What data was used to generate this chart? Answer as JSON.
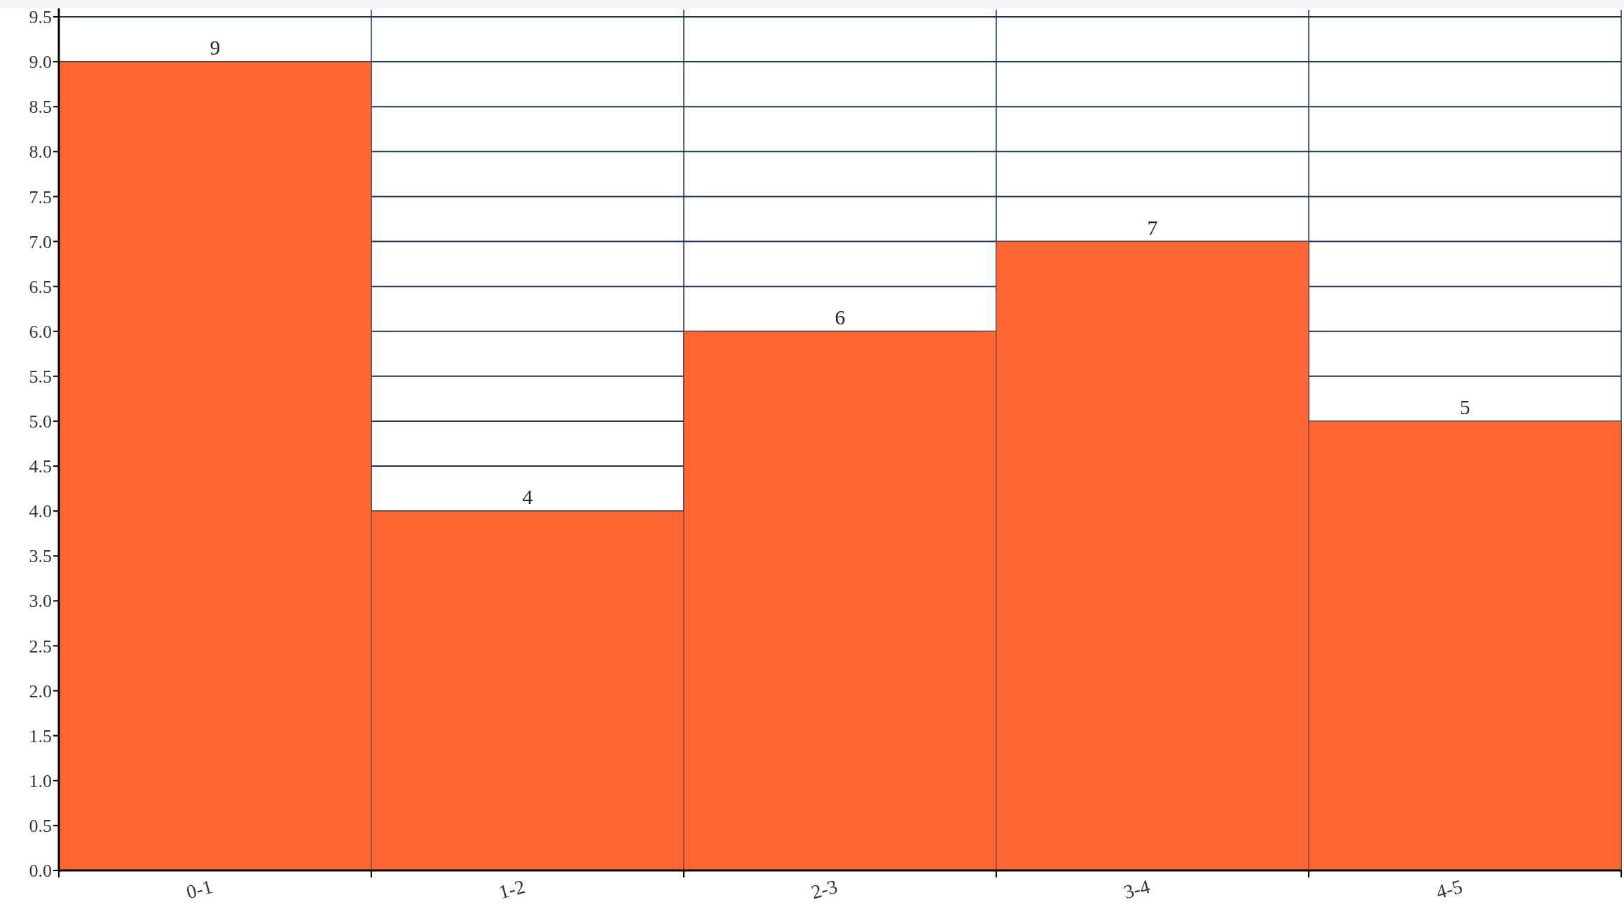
{
  "chart_data": {
    "type": "bar",
    "categories": [
      "0-1",
      "1-2",
      "2-3",
      "3-4",
      "4-5"
    ],
    "values": [
      9,
      4,
      6,
      7,
      5
    ],
    "color": "#ff6633",
    "data_labels": true,
    "grid": true,
    "ylim": [
      0,
      9.5
    ],
    "yticks": [
      {
        "value": 0,
        "label": "0.0"
      },
      {
        "value": 0.5,
        "label": "0.5"
      },
      {
        "value": 1,
        "label": "1.0"
      },
      {
        "value": 1.5,
        "label": "1.5"
      },
      {
        "value": 2,
        "label": "2.0"
      },
      {
        "value": 2.5,
        "label": "2.5"
      },
      {
        "value": 3,
        "label": "3.0"
      },
      {
        "value": 3.5,
        "label": "3.5"
      },
      {
        "value": 4,
        "label": "4.0"
      },
      {
        "value": 4.5,
        "label": "4.5"
      },
      {
        "value": 5,
        "label": "5.0"
      },
      {
        "value": 5.5,
        "label": "5.5"
      },
      {
        "value": 6,
        "label": "6.0"
      },
      {
        "value": 6.5,
        "label": "6.5"
      },
      {
        "value": 7,
        "label": "7.0"
      },
      {
        "value": 7.5,
        "label": "7.5"
      },
      {
        "value": 8,
        "label": "8.0"
      },
      {
        "value": 8.5,
        "label": "8.5"
      },
      {
        "value": 9,
        "label": "9.0"
      },
      {
        "value": 9.5,
        "label": "9.5"
      }
    ]
  }
}
